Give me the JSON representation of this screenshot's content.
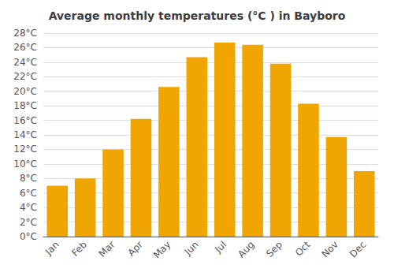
{
  "chart_data": {
    "type": "bar",
    "title": "Average monthly temperatures (°C ) in Bayboro",
    "categories": [
      "Jan",
      "Feb",
      "Mar",
      "Apr",
      "May",
      "Jun",
      "Jul",
      "Aug",
      "Sep",
      "Oct",
      "Nov",
      "Dec"
    ],
    "values": [
      7.0,
      8.0,
      12.0,
      16.2,
      20.6,
      24.7,
      26.7,
      26.4,
      23.8,
      18.3,
      13.7,
      9.0
    ],
    "color": "#F0A500",
    "ylim": [
      0,
      28
    ],
    "yticks": [
      {
        "value": 0,
        "label": "0°C"
      },
      {
        "value": 2,
        "label": "2°C"
      },
      {
        "value": 4,
        "label": "4°C"
      },
      {
        "value": 6,
        "label": "6°C"
      },
      {
        "value": 8,
        "label": "8°C"
      },
      {
        "value": 10,
        "label": "10°C"
      },
      {
        "value": 12,
        "label": "12°C"
      },
      {
        "value": 14,
        "label": "14°C"
      },
      {
        "value": 16,
        "label": "16°C"
      },
      {
        "value": 18,
        "label": "18°C"
      },
      {
        "value": 20,
        "label": "20°C"
      },
      {
        "value": 22,
        "label": "22°C"
      },
      {
        "value": 24,
        "label": "24°C"
      },
      {
        "value": 26,
        "label": "26°C"
      },
      {
        "value": 28,
        "label": "28°C"
      }
    ],
    "grid": true
  }
}
